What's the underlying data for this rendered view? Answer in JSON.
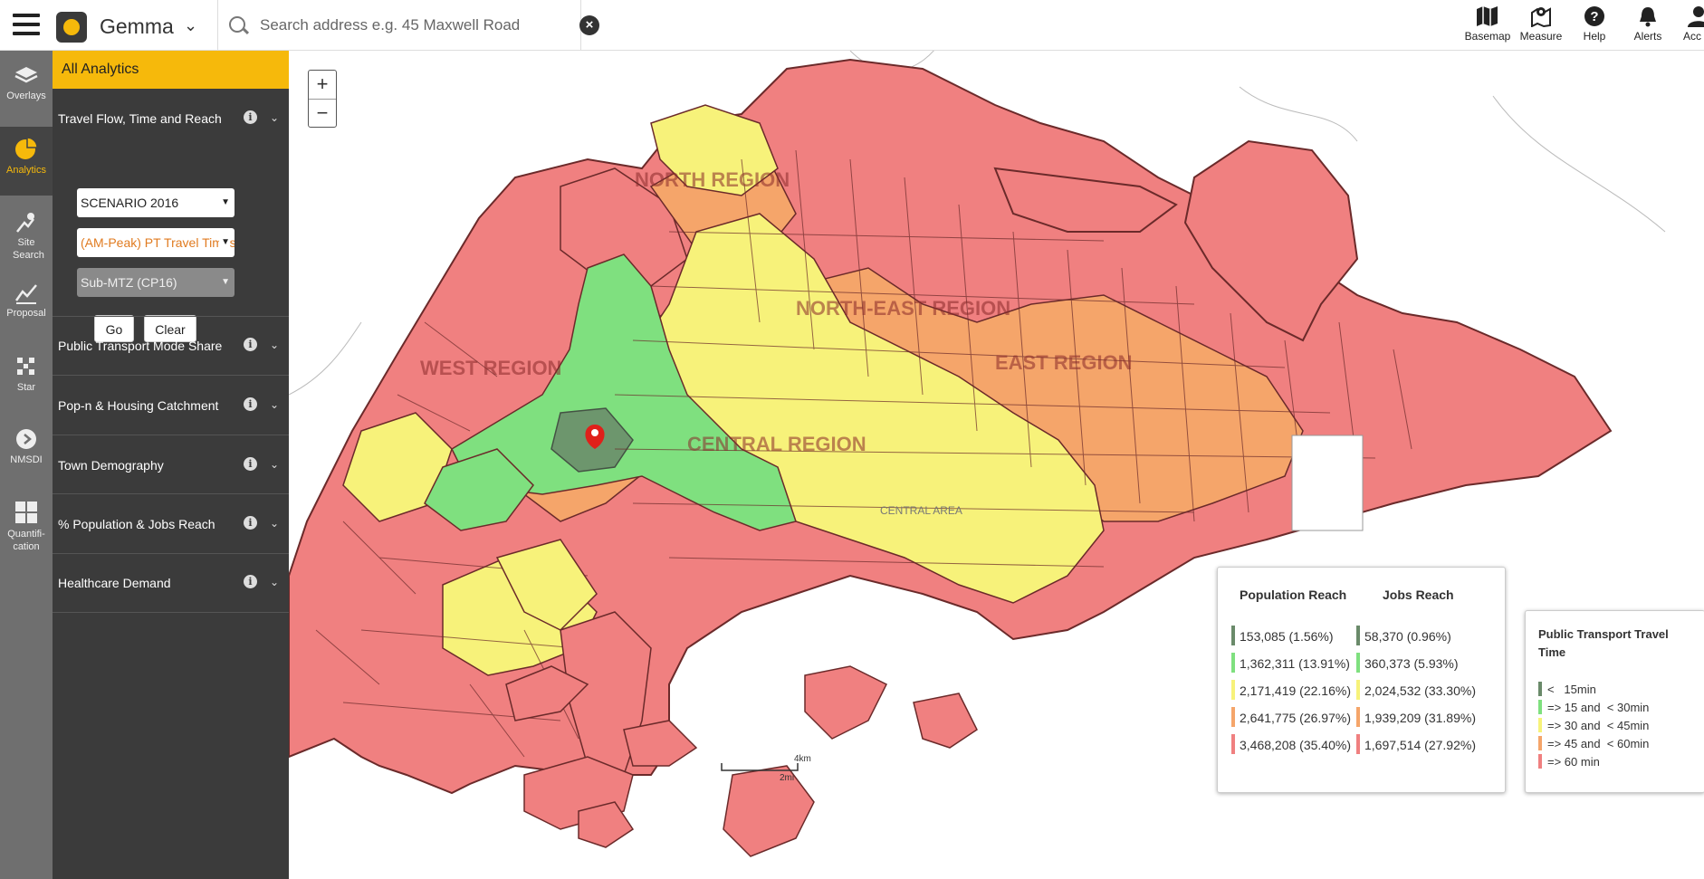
{
  "app": {
    "name": "Gemma"
  },
  "search": {
    "placeholder": "Search address e.g. 45 Maxwell Road"
  },
  "toolbar": [
    {
      "label": "Basemap",
      "icon": "map-icon"
    },
    {
      "label": "Measure",
      "icon": "measure-icon"
    },
    {
      "label": "Help",
      "icon": "help-icon"
    },
    {
      "label": "Alerts",
      "icon": "bell-icon"
    },
    {
      "label": "Acc",
      "icon": "account-icon"
    }
  ],
  "rail": [
    {
      "label": "Overlays",
      "icon": "layers-icon"
    },
    {
      "label": "Analytics",
      "icon": "pie-chart-icon",
      "active": true
    },
    {
      "label": "Site Search",
      "icon": "site-search-icon"
    },
    {
      "label": "Proposal",
      "icon": "proposal-icon"
    },
    {
      "label": "Star",
      "icon": "star-grid-icon"
    },
    {
      "label": "NMSDI",
      "icon": "play-circle-icon"
    },
    {
      "label": "Quantifi-cation",
      "icon": "grid-icon"
    }
  ],
  "panel": {
    "header": "All Analytics",
    "sections": [
      {
        "title": "Travel Flow, Time and Reach"
      },
      {
        "title": "Public Transport Mode Share"
      },
      {
        "title": "Pop-n & Housing Catchment"
      },
      {
        "title": "Town Demography"
      },
      {
        "title": "% Population & Jobs Reach"
      },
      {
        "title": "Healthcare Demand"
      }
    ],
    "selects": {
      "scenario": "SCENARIO 2016",
      "measure": "(AM-Peak) PT Travel Times to",
      "zone": "Sub-MTZ (CP16)"
    },
    "go_label": "Go",
    "clear_label": "Clear"
  },
  "map": {
    "zoom_in": "+",
    "zoom_out": "−",
    "region_labels": [
      "NORTH REGION",
      "NORTH-EAST REGION",
      "WEST REGION",
      "EAST REGION",
      "CENTRAL REGION"
    ],
    "central_area": "CENTRAL AREA",
    "scale_km": "4km",
    "scale_mi": "2mi"
  },
  "reach_legend": {
    "population_title": "Population Reach",
    "jobs_title": "Jobs Reach",
    "population": [
      "153,085 (1.56%)",
      "1,362,311 (13.91%)",
      "2,171,419 (22.16%)",
      "2,641,775 (26.97%)",
      "3,468,208 (35.40%)"
    ],
    "jobs": [
      "58,370 (0.96%)",
      "360,373 (5.93%)",
      "2,024,532 (33.30%)",
      "1,939,209 (31.89%)",
      "1,697,514 (27.92%)"
    ]
  },
  "travel_legend": {
    "title": "Public Transport Travel Time",
    "items": [
      "<   15min",
      "=> 15 and  < 30min",
      "=> 30 and  < 45min",
      "=> 45 and  < 60min",
      "=> 60 min"
    ]
  },
  "colors": {
    "accent": "#f6b90b",
    "class1": "#6a8a6a",
    "class2": "#7fe07f",
    "class3": "#f7f27a",
    "class4": "#f5a56a",
    "class5": "#f08080",
    "measure_text": "#e07b20"
  }
}
